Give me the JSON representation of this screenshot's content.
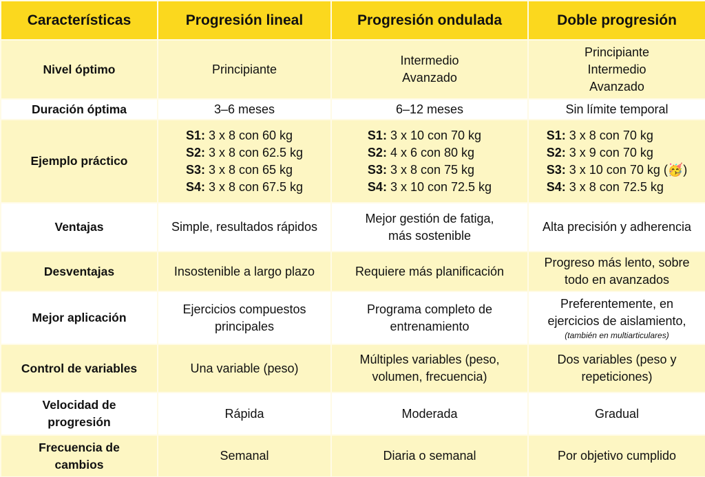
{
  "table": {
    "header": [
      "Características",
      "Progresión lineal",
      "Progresión ondulada",
      "Doble progresión"
    ],
    "rows": [
      {
        "label": [
          "Nivel óptimo"
        ],
        "cells": [
          {
            "lines": [
              "Principiante"
            ]
          },
          {
            "lines": [
              "Intermedio",
              "Avanzado"
            ]
          },
          {
            "lines": [
              "Principiante",
              "Intermedio",
              "Avanzado"
            ]
          }
        ]
      },
      {
        "label": [
          "Duración óptima"
        ],
        "cells": [
          {
            "lines": [
              "3–6 meses"
            ]
          },
          {
            "lines": [
              "6–12 meses"
            ]
          },
          {
            "lines": [
              "Sin límite temporal"
            ]
          }
        ]
      },
      {
        "label": [
          "Ejemplo práctico"
        ],
        "cells": [
          {
            "items": [
              {
                "label": "S1:",
                "text": "3 x 8 con 60 kg"
              },
              {
                "label": "S2:",
                "text": "3 x 8 con 62.5 kg"
              },
              {
                "label": "S3:",
                "text": "3 x 8 con 65 kg"
              },
              {
                "label": "S4:",
                "text": "3 x 8 con 67.5 kg"
              }
            ]
          },
          {
            "items": [
              {
                "label": "S1:",
                "text": "3 x 10 con 70 kg"
              },
              {
                "label": "S2:",
                "text": "4 x 6 con 80 kg"
              },
              {
                "label": "S3:",
                "text": "3 x 8 con 75 kg"
              },
              {
                "label": "S4:",
                "text": "3 x 10 con 72.5 kg"
              }
            ]
          },
          {
            "items": [
              {
                "label": "S1:",
                "text": "3 x 8 con 70 kg"
              },
              {
                "label": "S2:",
                "text": "3 x 9 con 70 kg"
              },
              {
                "label": "S3:",
                "text": "3 x 10 con 70 kg (🥳)"
              },
              {
                "label": "S4:",
                "text": "3 x 8 con 72.5 kg"
              }
            ]
          }
        ]
      },
      {
        "label": [
          "Ventajas"
        ],
        "cells": [
          {
            "lines": [
              "Simple, resultados rápidos"
            ]
          },
          {
            "lines": [
              "Mejor gestión de fatiga,",
              "más sostenible"
            ]
          },
          {
            "lines": [
              "Alta precisión y adherencia"
            ]
          }
        ]
      },
      {
        "label": [
          "Desventajas"
        ],
        "cells": [
          {
            "lines": [
              "Insostenible a largo plazo"
            ]
          },
          {
            "lines": [
              "Requiere más planificación"
            ]
          },
          {
            "lines": [
              "Progreso más lento, sobre",
              "todo en avanzados"
            ]
          }
        ]
      },
      {
        "label": [
          "Mejor aplicación"
        ],
        "cells": [
          {
            "lines": [
              "Ejercicios compuestos",
              "principales"
            ]
          },
          {
            "lines": [
              "Programa completo de",
              "entrenamiento"
            ]
          },
          {
            "lines": [
              "Preferentemente, en",
              "ejercicios de aislamiento,"
            ],
            "note": "(también en multiarticulares)"
          }
        ]
      },
      {
        "label": [
          "Control de variables"
        ],
        "cells": [
          {
            "lines": [
              "Una variable (peso)"
            ]
          },
          {
            "lines": [
              "Múltiples variables (peso,",
              "volumen, frecuencia)"
            ]
          },
          {
            "lines": [
              "Dos variables (peso y",
              "repeticiones)"
            ]
          }
        ]
      },
      {
        "label": [
          "Velocidad de",
          "progresión"
        ],
        "cells": [
          {
            "lines": [
              "Rápida"
            ]
          },
          {
            "lines": [
              "Moderada"
            ]
          },
          {
            "lines": [
              "Gradual"
            ]
          }
        ]
      },
      {
        "label": [
          "Frecuencia de",
          "cambios"
        ],
        "cells": [
          {
            "lines": [
              "Semanal"
            ]
          },
          {
            "lines": [
              "Diaria o semanal"
            ]
          },
          {
            "lines": [
              "Por objetivo cumplido"
            ]
          }
        ]
      }
    ]
  }
}
